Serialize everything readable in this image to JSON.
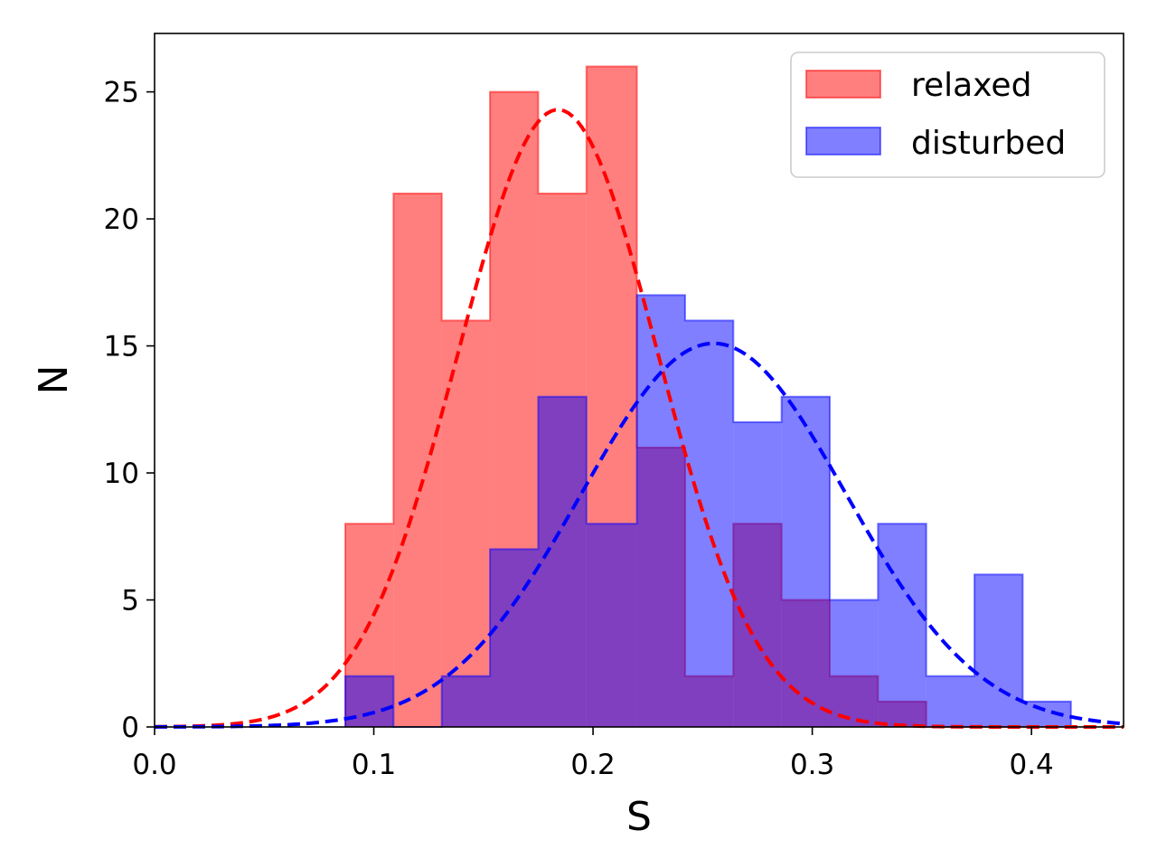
{
  "chart_data": {
    "type": "histogram",
    "xlabel": "S",
    "ylabel": "N",
    "xlim": [
      0.0,
      0.442
    ],
    "ylim": [
      0,
      27.3
    ],
    "x_ticks": [
      0.0,
      0.1,
      0.2,
      0.3,
      0.4
    ],
    "x_tick_labels": [
      "0.0",
      "0.1",
      "0.2",
      "0.3",
      "0.4"
    ],
    "y_ticks": [
      0,
      5,
      10,
      15,
      20,
      25
    ],
    "y_tick_labels": [
      "0",
      "5",
      "10",
      "15",
      "20",
      "25"
    ],
    "legend": {
      "placement": "top-right",
      "entries": [
        "relaxed",
        "disturbed"
      ]
    },
    "bin_edges": [
      0.087,
      0.109,
      0.131,
      0.153,
      0.175,
      0.197,
      0.22,
      0.242,
      0.264,
      0.286,
      0.308,
      0.33,
      0.352,
      0.374,
      0.396,
      0.418
    ],
    "series": [
      {
        "name": "relaxed",
        "color": "#ff0000",
        "fill_opacity": 0.5,
        "counts": [
          8,
          21,
          16,
          25,
          21,
          26,
          11,
          2,
          8,
          5,
          2,
          1,
          0,
          0,
          0
        ],
        "fit": {
          "kind": "gaussian",
          "mu": 0.184,
          "sigma": 0.0455,
          "peak": 24.3,
          "linestyle": "dashed"
        }
      },
      {
        "name": "disturbed",
        "color": "#0000ff",
        "fill_opacity": 0.5,
        "counts": [
          2,
          0,
          2,
          7,
          13,
          8,
          17,
          16,
          12,
          13,
          5,
          8,
          2,
          6,
          1
        ],
        "fit": {
          "kind": "gaussian",
          "mu": 0.255,
          "sigma": 0.0605,
          "peak": 15.1,
          "linestyle": "dashed"
        }
      }
    ]
  }
}
